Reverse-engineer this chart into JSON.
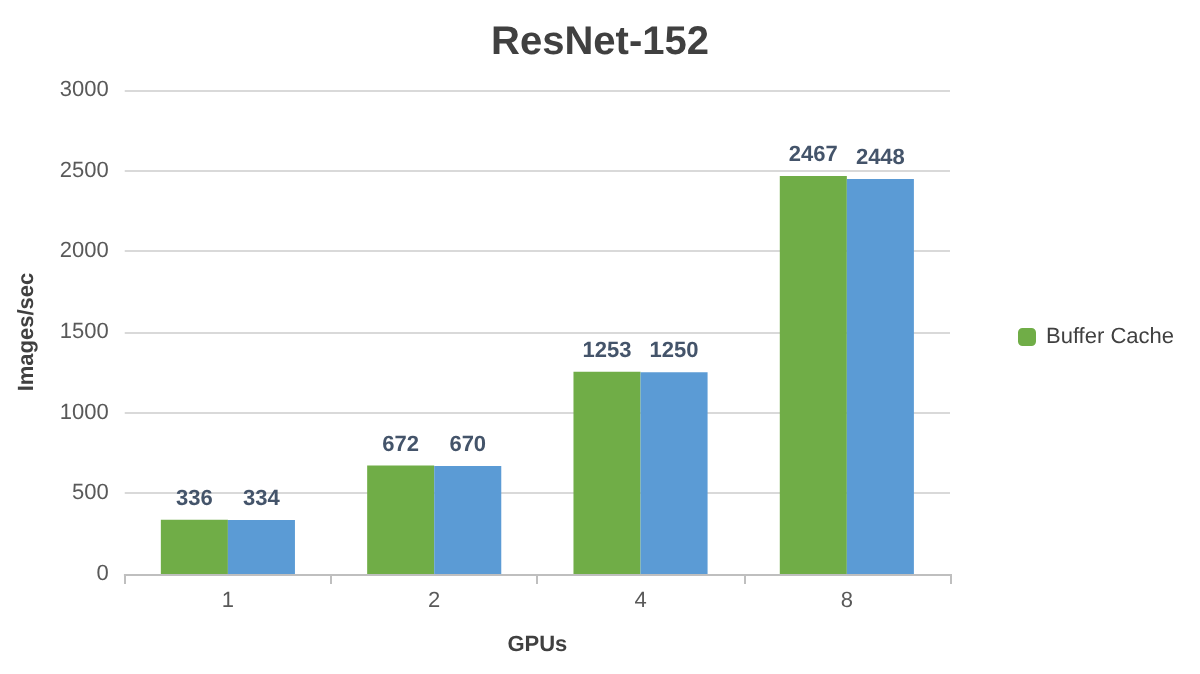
{
  "chart_data": {
    "type": "bar",
    "title": "ResNet-152",
    "xlabel": "GPUs",
    "ylabel": "Images/sec",
    "categories": [
      "1",
      "2",
      "4",
      "8"
    ],
    "series": [
      {
        "name": "Buffer Cache",
        "color": "#70ad47",
        "values": [
          336,
          672,
          1253,
          2467
        ]
      },
      {
        "color": "#5b9bd5",
        "values": [
          334,
          670,
          1250,
          2448
        ]
      }
    ],
    "ylim": [
      0,
      3000
    ],
    "yticks": [
      0,
      500,
      1000,
      1500,
      2000,
      2500,
      3000
    ],
    "grid": "y",
    "legend": "right",
    "data_labels": true
  }
}
